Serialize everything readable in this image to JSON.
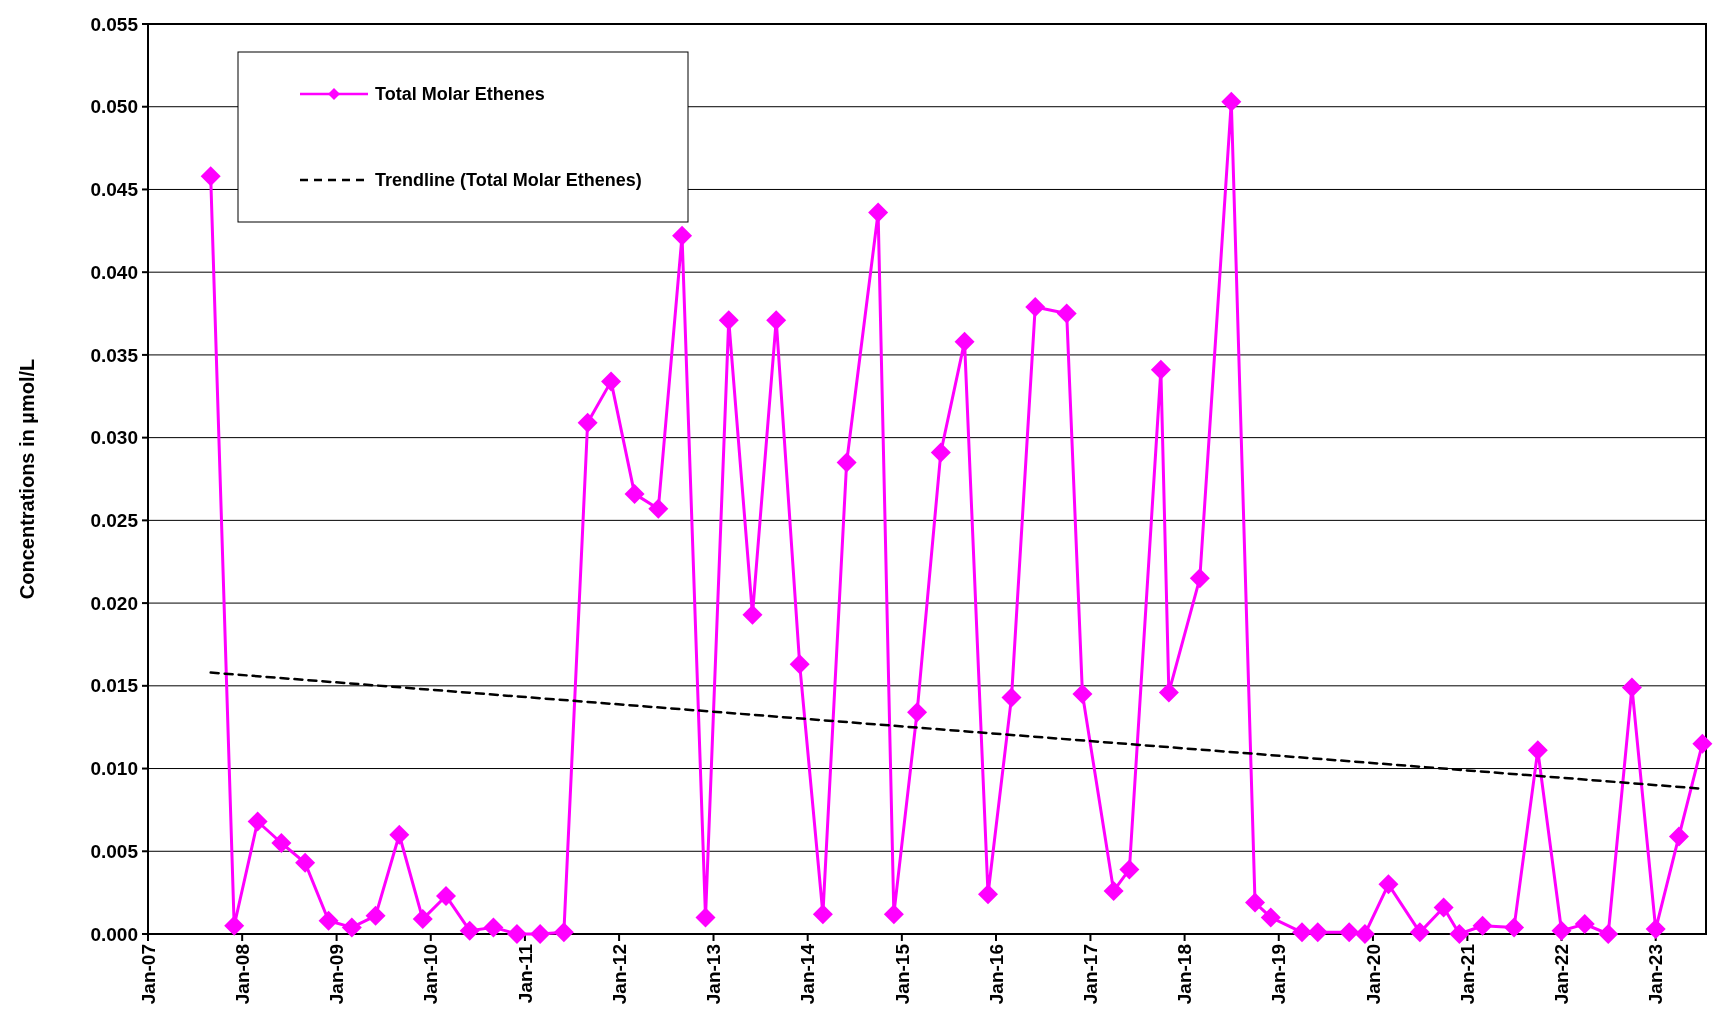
{
  "chart_data": {
    "type": "line",
    "ylabel": "Concentrations in µmol/L",
    "legend": "top left",
    "grid": "y",
    "xlim": [
      "2007-01-01",
      "2023-07-15"
    ],
    "xticks": [
      {
        "value": "2007-01-01",
        "label": "Jan-07"
      },
      {
        "value": "2008-01-01",
        "label": "Jan-08"
      },
      {
        "value": "2009-01-01",
        "label": "Jan-09"
      },
      {
        "value": "2010-01-01",
        "label": "Jan-10"
      },
      {
        "value": "2011-01-01",
        "label": "Jan-11"
      },
      {
        "value": "2012-01-01",
        "label": "Jan-12"
      },
      {
        "value": "2013-01-01",
        "label": "Jan-13"
      },
      {
        "value": "2014-01-01",
        "label": "Jan-14"
      },
      {
        "value": "2015-01-01",
        "label": "Jan-15"
      },
      {
        "value": "2016-01-01",
        "label": "Jan-16"
      },
      {
        "value": "2017-01-01",
        "label": "Jan-17"
      },
      {
        "value": "2018-01-01",
        "label": "Jan-18"
      },
      {
        "value": "2019-01-01",
        "label": "Jan-19"
      },
      {
        "value": "2020-01-01",
        "label": "Jan-20"
      },
      {
        "value": "2021-01-01",
        "label": "Jan-21"
      },
      {
        "value": "2022-01-01",
        "label": "Jan-22"
      },
      {
        "value": "2023-01-01",
        "label": "Jan-23"
      }
    ],
    "ylim": [
      0,
      0.055
    ],
    "yticks": [
      {
        "value": 0,
        "label": "0.000"
      },
      {
        "value": 0.005,
        "label": "0.005"
      },
      {
        "value": 0.01,
        "label": "0.010"
      },
      {
        "value": 0.015,
        "label": "0.015"
      },
      {
        "value": 0.02,
        "label": "0.020"
      },
      {
        "value": 0.025,
        "label": "0.025"
      },
      {
        "value": 0.03,
        "label": "0.030"
      },
      {
        "value": 0.035,
        "label": "0.035"
      },
      {
        "value": 0.04,
        "label": "0.040"
      },
      {
        "value": 0.045,
        "label": "0.045"
      },
      {
        "value": 0.05,
        "label": "0.050"
      },
      {
        "value": 0.055,
        "label": "0.055"
      }
    ],
    "series": [
      {
        "name": "Total Molar Ethenes",
        "color": "#ff00ff",
        "marker": "diamond",
        "line_style": "solid",
        "x": [
          "2007-09-01",
          "2007-12-01",
          "2008-03-01",
          "2008-06-01",
          "2008-09-01",
          "2008-12-01",
          "2009-03-01",
          "2009-06-01",
          "2009-09-01",
          "2009-12-01",
          "2010-03-01",
          "2010-06-01",
          "2010-09-01",
          "2010-12-01",
          "2011-03-01",
          "2011-06-01",
          "2011-09-01",
          "2011-12-01",
          "2012-03-01",
          "2012-06-01",
          "2012-09-01",
          "2012-12-01",
          "2013-03-01",
          "2013-06-01",
          "2013-09-01",
          "2013-12-01",
          "2014-03-01",
          "2014-06-01",
          "2014-10-01",
          "2014-12-01",
          "2015-03-01",
          "2015-06-01",
          "2015-09-01",
          "2015-12-01",
          "2016-03-01",
          "2016-06-01",
          "2016-10-01",
          "2016-12-01",
          "2017-04-01",
          "2017-06-01",
          "2017-10-01",
          "2017-11-01",
          "2018-03-01",
          "2018-07-01",
          "2018-10-01",
          "2018-12-01",
          "2019-04-01",
          "2019-06-01",
          "2019-10-01",
          "2019-12-01",
          "2020-03-01",
          "2020-07-01",
          "2020-10-01",
          "2020-12-01",
          "2021-03-01",
          "2021-07-01",
          "2021-10-01",
          "2022-01-01",
          "2022-04-01",
          "2022-07-01",
          "2022-10-01",
          "2023-01-01",
          "2023-04-01",
          "2023-07-01"
        ],
        "values": [
          0.0458,
          0.0005,
          0.0068,
          0.0055,
          0.0043,
          0.0008,
          0.0004,
          0.0011,
          0.006,
          0.0009,
          0.0023,
          0.0002,
          0.0004,
          0,
          0,
          0.0001,
          0.0309,
          0.0334,
          0.0266,
          0.0257,
          0.0422,
          0.001,
          0.0371,
          0.0193,
          0.0371,
          0.0163,
          0.0012,
          0.0285,
          0.0436,
          0.0012,
          0.0134,
          0.0291,
          0.0358,
          0.0024,
          0.0143,
          0.0379,
          0.0375,
          0.0145,
          0.0026,
          0.0039,
          0.0341,
          0.0146,
          0.0215,
          0.0503,
          0.0019,
          0.001,
          0.0001,
          0.0001,
          0.0001,
          0,
          0.003,
          0.0001,
          0.0016,
          0,
          0.0005,
          0.0004,
          0.0111,
          0.0002,
          0.0006,
          0,
          0.0149,
          0.0003,
          0.0059,
          0.0115
        ]
      },
      {
        "name": "Trendline (Total Molar Ethenes)",
        "color": "#000000",
        "marker": "none",
        "line_style": "dashed",
        "x": [
          "2007-09-01",
          "2023-06-15"
        ],
        "values": [
          0.0158,
          0.0088
        ]
      }
    ]
  }
}
